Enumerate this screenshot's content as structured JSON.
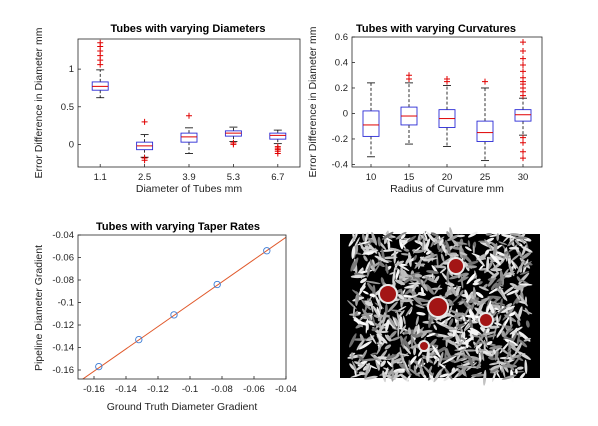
{
  "chart_data": [
    {
      "type": "box",
      "title": "Tubes with varying Diameters",
      "xlabel": "Diameter of Tubes mm",
      "ylabel": "Error Difference in Diameter mm",
      "categories": [
        "1.1",
        "2.5",
        "3.9",
        "5.3",
        "6.7"
      ],
      "ylim": [
        -0.3,
        1.4
      ],
      "yticks": [
        "0",
        "0.5",
        "1"
      ],
      "boxes": [
        {
          "whisker_low": 0.62,
          "q1": 0.72,
          "median": 0.77,
          "q3": 0.83,
          "whisker_high": 0.99,
          "outliers": [
            1.06,
            1.12,
            1.18,
            1.24,
            1.3,
            1.35
          ]
        },
        {
          "whisker_low": -0.17,
          "q1": -0.07,
          "median": -0.02,
          "q3": 0.03,
          "whisker_high": 0.13,
          "outliers": [
            0.3,
            -0.18,
            -0.21
          ]
        },
        {
          "whisker_low": -0.12,
          "q1": 0.03,
          "median": 0.1,
          "q3": 0.15,
          "whisker_high": 0.22,
          "outliers": [
            0.38
          ]
        },
        {
          "whisker_low": 0.04,
          "q1": 0.11,
          "median": 0.15,
          "q3": 0.18,
          "whisker_high": 0.23,
          "outliers": [
            0.02,
            0.0
          ]
        },
        {
          "whisker_low": 0.01,
          "q1": 0.07,
          "median": 0.12,
          "q3": 0.15,
          "whisker_high": 0.19,
          "outliers": [
            -0.03,
            -0.05,
            -0.07,
            -0.09,
            -0.12
          ]
        }
      ]
    },
    {
      "type": "box",
      "title": "Tubes with varying Curvatures",
      "xlabel": "Radius of Curvature mm",
      "ylabel": "Error Difference in Diameter mm",
      "categories": [
        "10",
        "15",
        "20",
        "25",
        "30"
      ],
      "ylim": [
        -0.42,
        0.6
      ],
      "yticks": [
        "-0.4",
        "-0.2",
        "0",
        "0.2",
        "0.4",
        "0.6"
      ],
      "boxes": [
        {
          "whisker_low": -0.34,
          "q1": -0.18,
          "median": -0.09,
          "q3": 0.02,
          "whisker_high": 0.24,
          "outliers": []
        },
        {
          "whisker_low": -0.24,
          "q1": -0.09,
          "median": -0.02,
          "q3": 0.05,
          "whisker_high": 0.24,
          "outliers": [
            0.27,
            0.3
          ]
        },
        {
          "whisker_low": -0.26,
          "q1": -0.11,
          "median": -0.04,
          "q3": 0.03,
          "whisker_high": 0.22,
          "outliers": [
            0.25,
            0.27
          ]
        },
        {
          "whisker_low": -0.37,
          "q1": -0.22,
          "median": -0.15,
          "q3": -0.06,
          "whisker_high": 0.2,
          "outliers": [
            0.25
          ]
        },
        {
          "whisker_low": -0.17,
          "q1": -0.06,
          "median": -0.01,
          "q3": 0.03,
          "whisker_high": 0.12,
          "outliers": [
            0.14,
            0.17,
            0.2,
            0.23,
            0.25,
            0.28,
            0.33,
            0.38,
            0.43,
            0.49,
            0.56,
            -0.19,
            -0.23,
            -0.3,
            -0.35
          ]
        }
      ]
    },
    {
      "type": "scatter",
      "title": "Tubes with varying Taper Rates",
      "xlabel": "Ground Truth Diameter Gradient",
      "ylabel": "Pipeline Diameter Gradient",
      "xlim": [
        -0.17,
        -0.04
      ],
      "ylim": [
        -0.168,
        -0.04
      ],
      "xticks": [
        "-0.16",
        "-0.14",
        "-0.12",
        "-0.1",
        "-0.08",
        "-0.06",
        "-0.04"
      ],
      "yticks": [
        "-0.16",
        "-0.14",
        "-0.12",
        "-0.1",
        "-0.08",
        "-0.06",
        "-0.04"
      ],
      "x": [
        -0.157,
        -0.132,
        -0.11,
        -0.083,
        -0.052
      ],
      "y": [
        -0.157,
        -0.133,
        -0.111,
        -0.084,
        -0.054
      ],
      "fit_line": {
        "x": [
          -0.17,
          -0.04
        ],
        "y": [
          -0.171,
          -0.042
        ]
      }
    }
  ],
  "image_panel": {
    "description_icon": "ultrasound-phantom-image",
    "colors": {
      "background": "#000000",
      "blob": "#a31515"
    }
  }
}
